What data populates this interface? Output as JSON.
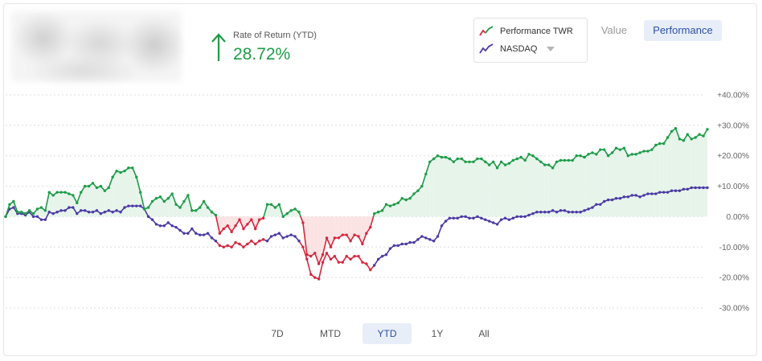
{
  "summary": {
    "ror_label": "Rate of Return (YTD)",
    "ror_value": "28.72%",
    "positive_color": "#1e9c48"
  },
  "legend": {
    "items": [
      {
        "label": "Performance TWR",
        "icon": "dual-trend-line-icon"
      },
      {
        "label": "NASDAQ",
        "icon": "purple-trend-line-icon"
      }
    ]
  },
  "view_toggle": {
    "value_label": "Value",
    "performance_label": "Performance",
    "selected": "Performance"
  },
  "periods": {
    "items": [
      "7D",
      "MTD",
      "YTD",
      "1Y",
      "All"
    ],
    "selected": "YTD"
  },
  "colors": {
    "performance_positive": "#1e9c48",
    "performance_negative": "#d7263d",
    "nasdaq": "#4b3aa3",
    "area_positive": "#e6f4ea",
    "area_negative": "#fbe3e3",
    "accent": "#2b4fa8"
  },
  "chart_data": {
    "type": "line",
    "title": "",
    "xlabel": "",
    "ylabel": "",
    "ylim": [
      -30,
      40
    ],
    "y_ticks": [
      40,
      30,
      20,
      10,
      0,
      -10,
      -20,
      -30
    ],
    "y_tick_labels": [
      "+40.00%",
      "+30.00%",
      "+20.00%",
      "+10.00%",
      "0.00%",
      "-10.00%",
      "-20.00%",
      "-30.00%"
    ],
    "grid": true,
    "y_axis_side": "right",
    "series": [
      {
        "name": "Performance TWR",
        "values": [
          0,
          4,
          5,
          1.5,
          1.5,
          1,
          2,
          1,
          2.5,
          3,
          2,
          8,
          7,
          8,
          8,
          8,
          7.5,
          7,
          4.5,
          8,
          10,
          10,
          11,
          9.5,
          10,
          8.5,
          9.5,
          13,
          15,
          14.5,
          15,
          16,
          16,
          13,
          8,
          2.5,
          3,
          5,
          6,
          6.5,
          5,
          6,
          7.5,
          4,
          3,
          5,
          7,
          2,
          2,
          3,
          5,
          3,
          1.5,
          0.5,
          -5.5,
          -4,
          -3,
          -5,
          -3,
          -1,
          -4,
          -2.5,
          -1,
          -4,
          -1,
          -0.5,
          4,
          4,
          3,
          4,
          0,
          1,
          2,
          2.5,
          1.5,
          -2,
          -12.5,
          -13,
          -12,
          -15.5,
          -12.5,
          -7,
          -10,
          -7,
          -7,
          -6,
          -6,
          -8,
          -6,
          -6.5,
          -9,
          -5.5,
          -3.5,
          1,
          1.5,
          2,
          4,
          3.5,
          4,
          4.5,
          6,
          5.5,
          6,
          7.5,
          8.5,
          10,
          14,
          18,
          19,
          20,
          19.5,
          19.5,
          19,
          18,
          19,
          19,
          18,
          18,
          18,
          19,
          19,
          18,
          17,
          18,
          16,
          18,
          17,
          17.5,
          18.5,
          19,
          19.5,
          18.5,
          20.5,
          20,
          19,
          18,
          17,
          17,
          16,
          18,
          18.5,
          18.5,
          18.5,
          18.5,
          20,
          20,
          19.5,
          20.5,
          21,
          20.5,
          22,
          22,
          20,
          21,
          22.5,
          22,
          22.5,
          20,
          20.5,
          20.5,
          21,
          21.5,
          21.5,
          22,
          23.5,
          24,
          24,
          26,
          28,
          29,
          25.5,
          25,
          27,
          25.5,
          26,
          27,
          26.5,
          28.7
        ]
      },
      {
        "name": "NASDAQ",
        "values": [
          0,
          2.5,
          3,
          1,
          1,
          0.5,
          1.5,
          0,
          0,
          -1,
          -1,
          1.5,
          1,
          1.5,
          2,
          2,
          3,
          3,
          1,
          2,
          2,
          1.5,
          1.5,
          2,
          1,
          1.5,
          2,
          1.5,
          2,
          1.5,
          3,
          3.5,
          3.5,
          3.5,
          3.5,
          2.5,
          0,
          -1,
          -2.5,
          -3,
          -3,
          -2,
          -3,
          -3.5,
          -4.5,
          -5.5,
          -5.5,
          -4,
          -5.5,
          -6,
          -6,
          -5.5,
          -7,
          -8,
          -9.5,
          -10,
          -9.5,
          -10,
          -8.5,
          -9,
          -10,
          -9,
          -8,
          -9,
          -8,
          -7.5,
          -8,
          -6.5,
          -6,
          -5.5,
          -7,
          -6.5,
          -6,
          -6.5,
          -8,
          -10,
          -14,
          -19,
          -20,
          -20.5,
          -15,
          -12,
          -14,
          -13,
          -15,
          -15,
          -13,
          -14,
          -13,
          -13,
          -15,
          -15.5,
          -17.5,
          -16,
          -14,
          -13,
          -12.5,
          -10.5,
          -9.5,
          -9.5,
          -9,
          -9,
          -8.5,
          -8.5,
          -7.5,
          -6.5,
          -7,
          -7.5,
          -8,
          -6.5,
          -3,
          -1.5,
          -0.5,
          -0.5,
          -0.5,
          0,
          0,
          -0.5,
          -0.5,
          0,
          -0.5,
          -1,
          -1.5,
          -2,
          -2.5,
          -1,
          -0.5,
          -1,
          -0.5,
          0,
          0,
          0,
          0.5,
          1,
          1.5,
          1.5,
          1.5,
          1.5,
          2,
          1.5,
          2,
          2,
          1.5,
          1.5,
          1.5,
          1.5,
          2,
          2.5,
          3,
          4,
          4,
          5,
          5.5,
          5.5,
          6,
          6,
          6.5,
          6.5,
          7,
          7,
          6.5,
          7,
          7.5,
          7.5,
          7.5,
          8,
          8,
          8,
          8.5,
          8.5,
          8.5,
          9,
          9,
          9.5,
          9.5,
          9.5,
          9.5,
          9.5,
          10,
          10,
          10
        ]
      }
    ],
    "period": "YTD"
  }
}
